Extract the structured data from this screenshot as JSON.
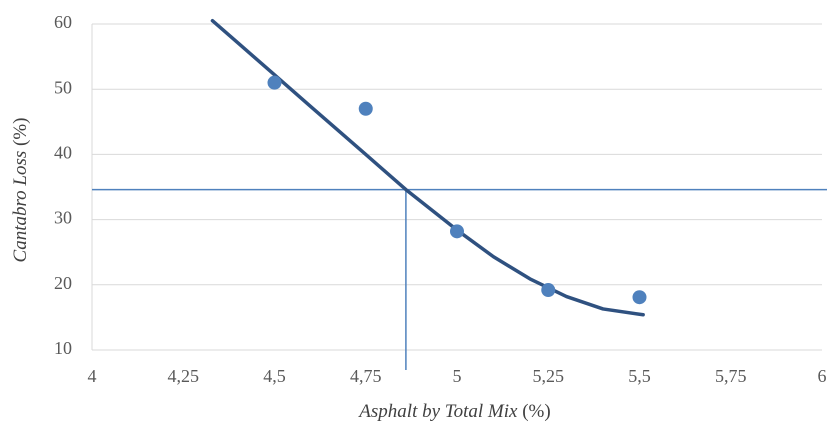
{
  "chart_data": {
    "type": "scatter",
    "x_label": "Asphalt by Total Mix",
    "x_label_unit": "(%)",
    "y_label": "Cantabro Loss",
    "y_label_unit": "(%)",
    "series": [
      {
        "color": "#4f81bd",
        "x": [
          4.5,
          4.75,
          5,
          5.25,
          5.5
        ],
        "values": [
          51,
          47,
          28.2,
          19.2,
          18.1
        ]
      }
    ],
    "trendline": {
      "color": "#2f5180",
      "x": [
        4.33,
        4.4,
        4.5,
        4.6,
        4.75,
        4.86,
        5,
        5.1,
        5.2,
        5.3,
        5.4,
        5.51
      ],
      "values": [
        60.5,
        57.1,
        52.2,
        47.3,
        40.0,
        34.6,
        28.4,
        24.3,
        20.9,
        18.2,
        16.3,
        15.4
      ]
    },
    "reference": {
      "color": "#4f81bd",
      "y": 34.6,
      "x": 4.86
    },
    "xlim": [
      4,
      6
    ],
    "xticks": [
      4,
      {
        "value": 4.25,
        "label": "4,25"
      },
      {
        "value": 4.5,
        "label": "4,5"
      },
      {
        "value": 4.75,
        "label": "4,75"
      },
      5,
      {
        "value": 5.25,
        "label": "5,25"
      },
      {
        "value": 5.5,
        "label": "5,5"
      },
      {
        "value": 5.75,
        "label": "5,75"
      },
      6
    ],
    "ylim": [
      10,
      60
    ],
    "yticks": [
      10,
      20,
      30,
      40,
      50,
      60
    ],
    "grid": true
  }
}
